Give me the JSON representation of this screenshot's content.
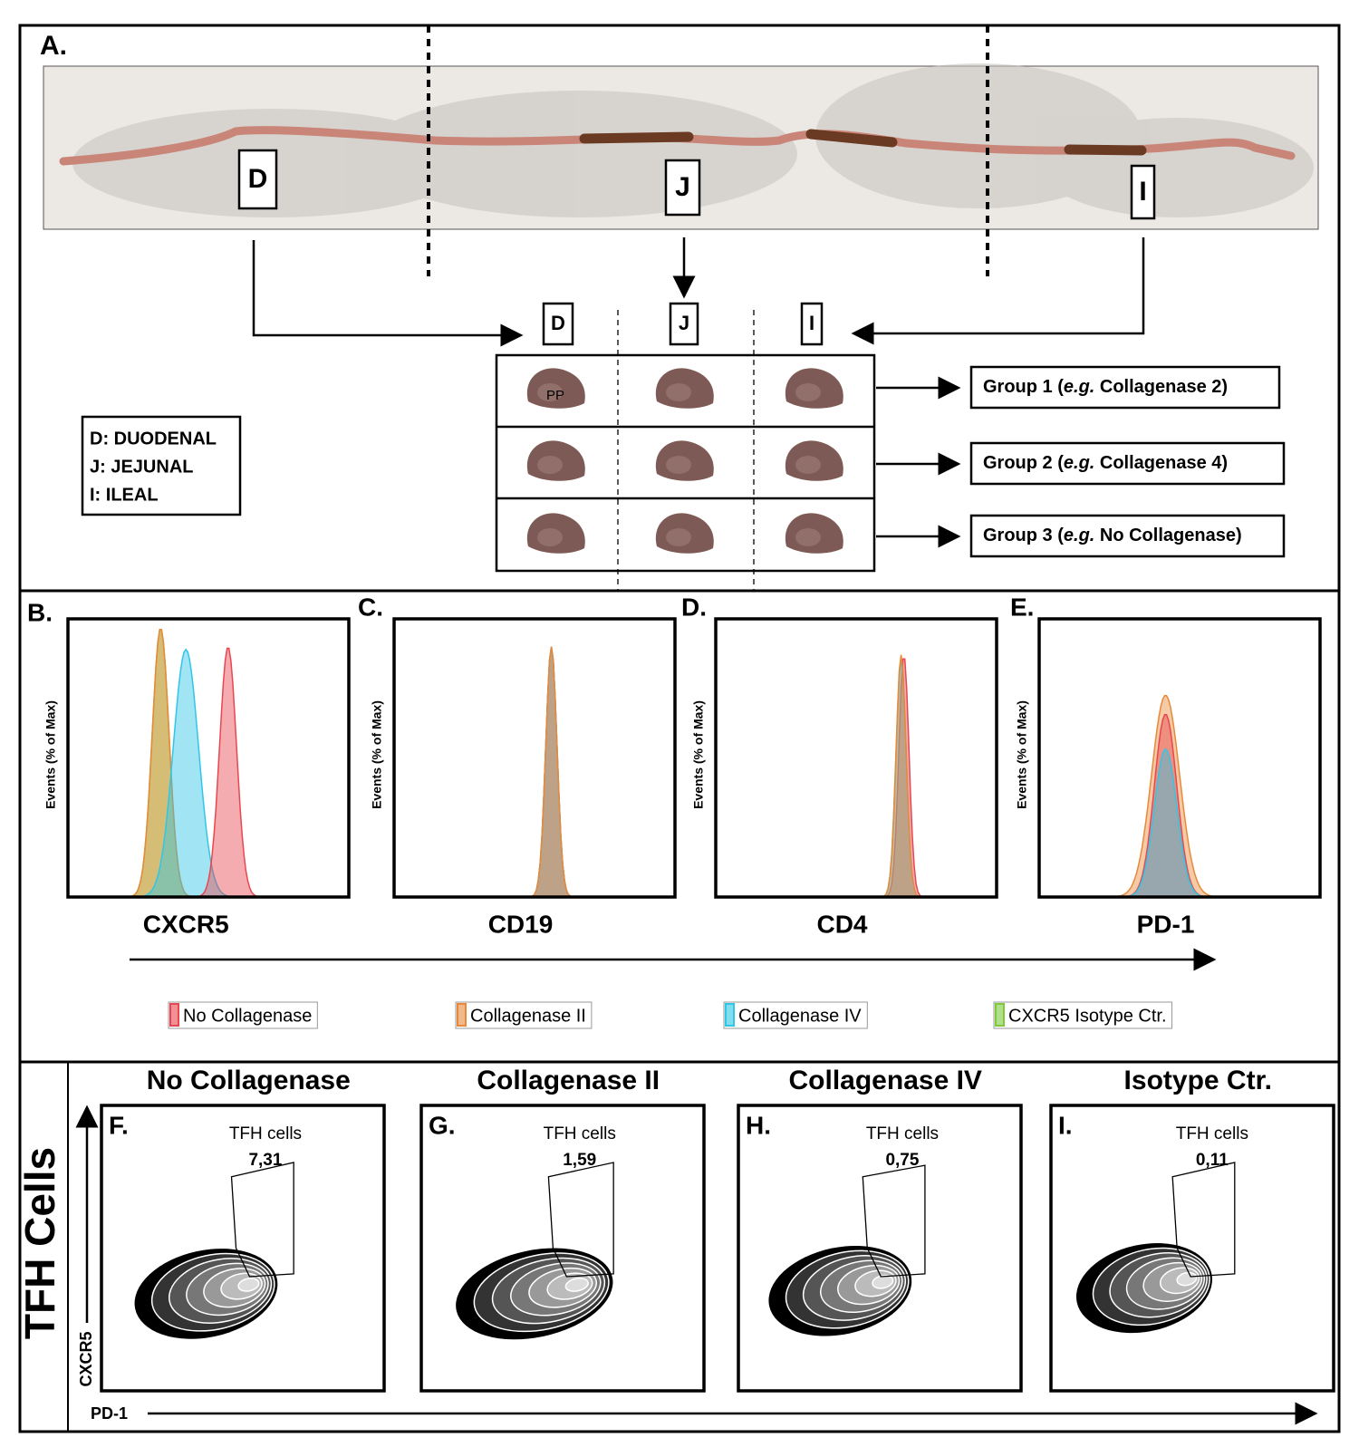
{
  "panel_a": {
    "letter": "A.",
    "intestine_labels": [
      "D",
      "J",
      "I"
    ],
    "column_labels": [
      "D",
      "J",
      "I"
    ],
    "tissue_label": "PP",
    "legend": [
      "D: DUODENAL",
      "J: JEJUNAL",
      "I: ILEAL"
    ],
    "groups": [
      {
        "prefix": "Group 1 (",
        "italic": "e.g.",
        "suffix": " Collagenase 2)"
      },
      {
        "prefix": "Group 2 (",
        "italic": "e.g.",
        "suffix": " Collagenase 4)"
      },
      {
        "prefix": "Group 3 (",
        "italic": "e.g.",
        "suffix": " No Collagenase)"
      }
    ]
  },
  "histograms": {
    "panels": [
      {
        "letter": "B.",
        "y_label": "Events (% of Max)",
        "x_label": "CXCR5"
      },
      {
        "letter": "C.",
        "y_label": "Events (% of Max)",
        "x_label": "CD19"
      },
      {
        "letter": "D.",
        "y_label": "Events (% of Max)",
        "x_label": "CD4"
      },
      {
        "letter": "E.",
        "y_label": "Events (% of Max)",
        "x_label": "PD-1"
      }
    ],
    "legend": [
      {
        "name": "No Collagenase",
        "color": "#e8474f"
      },
      {
        "name": "Collagenase II",
        "color": "#e8893a"
      },
      {
        "name": "Collagenase IV",
        "color": "#2fc6e8"
      },
      {
        "name": "CXCR5 Isotype Ctr.",
        "color": "#7fc93a"
      }
    ]
  },
  "tfh": {
    "title": "TFH Cells",
    "y_label": "CXCR5",
    "x_label": "PD-1",
    "panels": [
      {
        "letter": "F.",
        "title": "No Collagenase",
        "gate_label": "TFH cells",
        "gate_value": "7,31"
      },
      {
        "letter": "G.",
        "title": "Collagenase II",
        "gate_label": "TFH cells",
        "gate_value": "1,59"
      },
      {
        "letter": "H.",
        "title": "Collagenase IV",
        "gate_label": "TFH cells",
        "gate_value": "0,75"
      },
      {
        "letter": "I.",
        "title": "Isotype Ctr.",
        "gate_label": "TFH cells",
        "gate_value": "0,11"
      }
    ]
  }
}
